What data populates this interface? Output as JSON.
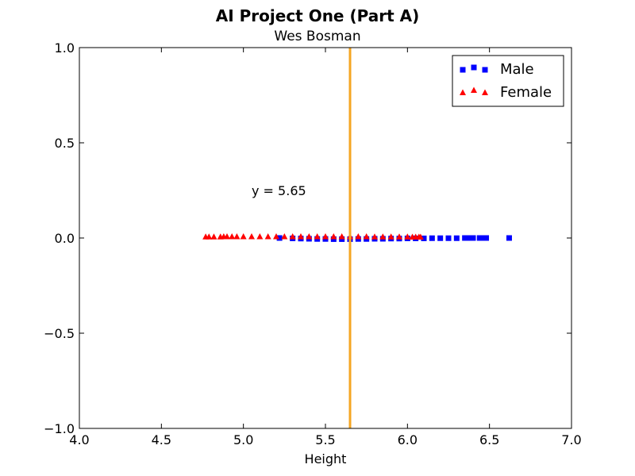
{
  "chart_data": {
    "type": "scatter",
    "title": "AI Project One (Part A)",
    "subtitle": "Wes Bosman",
    "xlabel": "Height",
    "ylabel": "",
    "xlim": [
      4.0,
      7.0
    ],
    "ylim": [
      -1.0,
      1.0
    ],
    "x_ticks": [
      "4.0",
      "4.5",
      "5.0",
      "5.5",
      "6.0",
      "6.5",
      "7.0"
    ],
    "y_ticks": [
      "1.0",
      "0.5",
      "0.0",
      "−0.5",
      "−1.0"
    ],
    "grid": false,
    "legend_position": "top-right",
    "series": [
      {
        "name": "Male",
        "marker": "square",
        "color": "#0000ff",
        "x": [
          5.22,
          5.3,
          5.35,
          5.4,
          5.45,
          5.5,
          5.55,
          5.6,
          5.65,
          5.7,
          5.75,
          5.8,
          5.85,
          5.9,
          5.95,
          6.0,
          6.05,
          6.1,
          6.15,
          6.2,
          6.25,
          6.3,
          6.35,
          6.38,
          6.4,
          6.44,
          6.46,
          6.48,
          6.62
        ],
        "y": [
          0.0,
          -0.002,
          -0.003,
          -0.004,
          -0.005,
          -0.005,
          -0.006,
          -0.006,
          -0.006,
          -0.005,
          -0.005,
          -0.004,
          -0.004,
          -0.003,
          -0.003,
          -0.002,
          -0.002,
          -0.002,
          -0.001,
          -0.001,
          -0.001,
          -0.001,
          0.0,
          0.0,
          0.0,
          0.0,
          0.0,
          0.0,
          0.0
        ]
      },
      {
        "name": "Female",
        "marker": "triangle",
        "color": "#ff0000",
        "x": [
          4.77,
          4.79,
          4.82,
          4.86,
          4.88,
          4.9,
          4.93,
          4.96,
          5.0,
          5.05,
          5.1,
          5.15,
          5.2,
          5.25,
          5.3,
          5.35,
          5.4,
          5.45,
          5.5,
          5.55,
          5.6,
          5.65,
          5.7,
          5.75,
          5.8,
          5.85,
          5.9,
          5.95,
          6.0,
          6.03,
          6.05,
          6.07,
          6.08
        ],
        "y": [
          0.005,
          0.005,
          0.005,
          0.005,
          0.006,
          0.006,
          0.006,
          0.006,
          0.006,
          0.006,
          0.006,
          0.006,
          0.006,
          0.006,
          0.006,
          0.006,
          0.006,
          0.006,
          0.006,
          0.006,
          0.006,
          0.006,
          0.006,
          0.006,
          0.005,
          0.005,
          0.005,
          0.005,
          0.005,
          0.004,
          0.004,
          0.004,
          0.004
        ]
      }
    ],
    "reference_line": {
      "orientation": "vertical",
      "x": 5.65,
      "color": "#f5a623"
    },
    "annotation": {
      "text": "y = 5.65",
      "x": 5.05,
      "y": 0.25
    }
  }
}
